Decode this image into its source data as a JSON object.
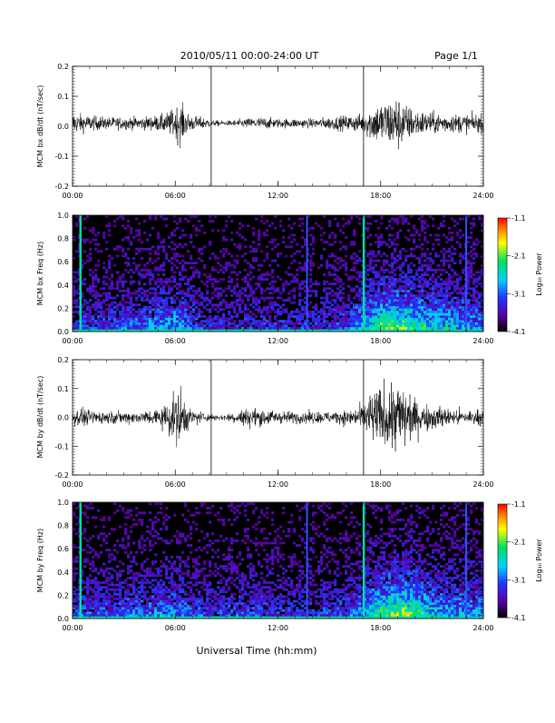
{
  "header": {
    "title": "2010/05/11  00:00-24:00 UT",
    "page": "Page 1/1"
  },
  "footer": {
    "xlabel": "Universal Time (hh:mm)"
  },
  "colorbar": {
    "label": "Log₁₀ Power",
    "ticks": [
      "-1.1",
      "-2.1",
      "-3.1",
      "-4.1"
    ],
    "tick_values": [
      -1.1,
      -2.1,
      -3.1,
      -4.1
    ],
    "range": [
      -4.1,
      -1.1
    ]
  },
  "chart_data": [
    {
      "type": "line",
      "ylabel": "MCM bx dB/dt (nT/sec)",
      "x_ticks": [
        "00:00",
        "06:00",
        "12:00",
        "18:00",
        "24:00"
      ],
      "y_ticks": [
        "0.2",
        "0.1",
        "0.0",
        "-0.1",
        "-0.2"
      ],
      "y_tick_values": [
        0.2,
        0.1,
        0.0,
        -0.1,
        -0.2
      ],
      "xlim_hours": [
        0,
        24
      ],
      "ylim": [
        -0.2,
        0.2
      ],
      "markers_hours": [
        8.1,
        17.0
      ],
      "baseline": 0.01,
      "envelope_hours": [
        0,
        1,
        2,
        3,
        4,
        5,
        5.5,
        6,
        6.3,
        6.6,
        7,
        7.5,
        8,
        8.1,
        9,
        10,
        11,
        12,
        13,
        14,
        15,
        16,
        17,
        17.2,
        17.6,
        18,
        18.5,
        19,
        19.5,
        20,
        21,
        22,
        23,
        24
      ],
      "envelope_amp": [
        0.035,
        0.025,
        0.02,
        0.02,
        0.02,
        0.025,
        0.035,
        0.05,
        0.07,
        0.04,
        0.025,
        0.02,
        0.015,
        0.01,
        0.008,
        0.015,
        0.02,
        0.015,
        0.015,
        0.015,
        0.02,
        0.025,
        0.03,
        0.045,
        0.06,
        0.07,
        0.08,
        0.09,
        0.06,
        0.045,
        0.035,
        0.03,
        0.03,
        0.03
      ]
    },
    {
      "type": "heatmap",
      "ylabel": "MCM bx Freq (Hz)",
      "x_ticks": [
        "00:00",
        "06:00",
        "12:00",
        "18:00",
        "24:00"
      ],
      "y_ticks": [
        "1.0",
        "0.8",
        "0.6",
        "0.4",
        "0.2",
        "0.0"
      ],
      "y_tick_values": [
        1.0,
        0.8,
        0.6,
        0.4,
        0.2,
        0.0
      ],
      "xlim_hours": [
        0,
        24
      ],
      "ylim": [
        0,
        1.0
      ],
      "vertical_lines_hours": [
        0.45,
        13.7,
        17.0,
        23.0
      ],
      "activity_hours": [
        0,
        2,
        4,
        6,
        8,
        10,
        12,
        14,
        16,
        17,
        18,
        19,
        20,
        21,
        22,
        24
      ],
      "activity_level": [
        0.25,
        0.3,
        0.35,
        0.45,
        0.2,
        0.25,
        0.25,
        0.25,
        0.3,
        0.5,
        0.7,
        0.7,
        0.6,
        0.55,
        0.5,
        0.4
      ]
    },
    {
      "type": "line",
      "ylabel": "MCM by dB/dt (nT/sec)",
      "x_ticks": [
        "00:00",
        "06:00",
        "12:00",
        "18:00",
        "24:00"
      ],
      "y_ticks": [
        "0.2",
        "0.1",
        "0.0",
        "-0.1",
        "-0.2"
      ],
      "y_tick_values": [
        0.2,
        0.1,
        0.0,
        -0.1,
        -0.2
      ],
      "xlim_hours": [
        0,
        24
      ],
      "ylim": [
        -0.2,
        0.2
      ],
      "markers_hours": [
        8.1,
        17.0
      ],
      "baseline": 0.0,
      "envelope_hours": [
        0,
        1,
        2,
        3,
        4,
        5,
        5.5,
        6,
        6.3,
        6.6,
        7,
        7.5,
        8,
        8.1,
        9,
        10,
        11,
        12,
        13,
        14,
        15,
        16,
        17,
        17.2,
        17.6,
        18,
        18.5,
        19,
        19.5,
        20,
        21,
        22,
        23,
        24
      ],
      "envelope_amp": [
        0.03,
        0.025,
        0.02,
        0.02,
        0.02,
        0.03,
        0.05,
        0.08,
        0.11,
        0.05,
        0.025,
        0.02,
        0.012,
        0.01,
        0.012,
        0.03,
        0.03,
        0.02,
        0.02,
        0.02,
        0.02,
        0.025,
        0.04,
        0.07,
        0.09,
        0.1,
        0.11,
        0.13,
        0.1,
        0.06,
        0.04,
        0.03,
        0.025,
        0.025
      ]
    },
    {
      "type": "heatmap",
      "ylabel": "MCM by Freq (Hz)",
      "x_ticks": [
        "00:00",
        "06:00",
        "12:00",
        "18:00",
        "24:00"
      ],
      "y_ticks": [
        "1.0",
        "0.8",
        "0.6",
        "0.4",
        "0.2",
        "0.0"
      ],
      "y_tick_values": [
        1.0,
        0.8,
        0.6,
        0.4,
        0.2,
        0.0
      ],
      "xlim_hours": [
        0,
        24
      ],
      "ylim": [
        0,
        1.0
      ],
      "vertical_lines_hours": [
        0.45,
        13.7,
        17.0,
        23.0
      ],
      "activity_hours": [
        0,
        2,
        4,
        6,
        8,
        10,
        12,
        14,
        16,
        17,
        18,
        19,
        20,
        21,
        22,
        24
      ],
      "activity_level": [
        0.3,
        0.3,
        0.35,
        0.4,
        0.25,
        0.3,
        0.25,
        0.25,
        0.3,
        0.45,
        0.65,
        0.75,
        0.7,
        0.5,
        0.45,
        0.4
      ]
    }
  ]
}
